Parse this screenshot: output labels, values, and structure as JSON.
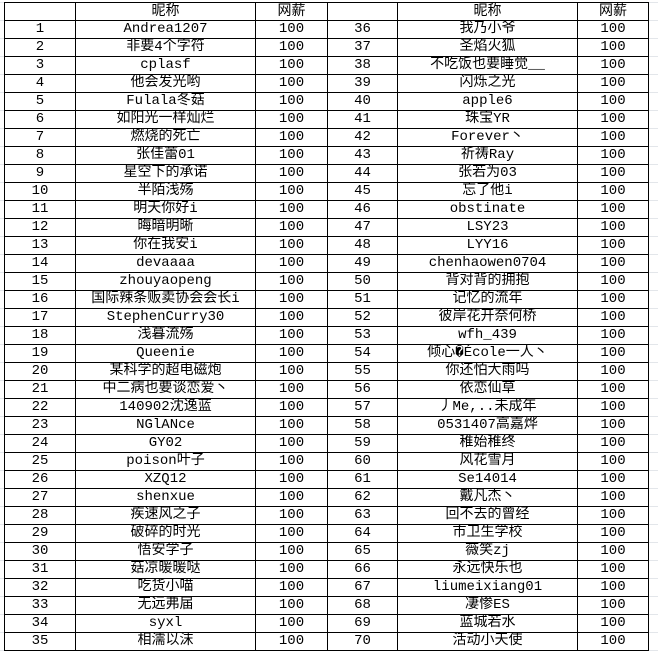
{
  "headers": {
    "index": "",
    "name": "昵称",
    "salary": "网薪"
  },
  "rows": [
    {
      "no": "1",
      "name": "Andrea1207",
      "salary": "100"
    },
    {
      "no": "2",
      "name": "非要4个字符",
      "salary": "100"
    },
    {
      "no": "3",
      "name": "cplasf",
      "salary": "100"
    },
    {
      "no": "4",
      "name": "他会发光哟",
      "salary": "100"
    },
    {
      "no": "5",
      "name": "Fulala冬菇",
      "salary": "100"
    },
    {
      "no": "6",
      "name": "如阳光一样灿烂",
      "salary": "100"
    },
    {
      "no": "7",
      "name": "燃烧的死亡",
      "salary": "100"
    },
    {
      "no": "8",
      "name": "张佳蕾01",
      "salary": "100"
    },
    {
      "no": "9",
      "name": "星空下的承诺",
      "salary": "100"
    },
    {
      "no": "10",
      "name": "半陌浅殇",
      "salary": "100"
    },
    {
      "no": "11",
      "name": "明天你好i",
      "salary": "100"
    },
    {
      "no": "12",
      "name": "晦暗明晰",
      "salary": "100"
    },
    {
      "no": "13",
      "name": "你在我安i",
      "salary": "100"
    },
    {
      "no": "14",
      "name": "devaaaa",
      "salary": "100"
    },
    {
      "no": "15",
      "name": "zhouyaopeng",
      "salary": "100"
    },
    {
      "no": "16",
      "name": "国际辣条贩卖协会会长i",
      "salary": "100"
    },
    {
      "no": "17",
      "name": "StephenCurry30",
      "salary": "100"
    },
    {
      "no": "18",
      "name": "浅暮流殇",
      "salary": "100"
    },
    {
      "no": "19",
      "name": "Queenie",
      "salary": "100"
    },
    {
      "no": "20",
      "name": "某科学的超电磁炮",
      "salary": "100"
    },
    {
      "no": "21",
      "name": "中二病也要谈恋爱丶",
      "salary": "100"
    },
    {
      "no": "22",
      "name": "140902沈逸蓝",
      "salary": "100"
    },
    {
      "no": "23",
      "name": "NGlANce",
      "salary": "100"
    },
    {
      "no": "24",
      "name": "GY02",
      "salary": "100"
    },
    {
      "no": "25",
      "name": "poison叶子",
      "salary": "100"
    },
    {
      "no": "26",
      "name": "XZQ12",
      "salary": "100"
    },
    {
      "no": "27",
      "name": "shenxue",
      "salary": "100"
    },
    {
      "no": "28",
      "name": "疾速风之子",
      "salary": "100"
    },
    {
      "no": "29",
      "name": "破碎的时光",
      "salary": "100"
    },
    {
      "no": "30",
      "name": "悟安学子",
      "salary": "100"
    },
    {
      "no": "31",
      "name": "菇凉暖暖哒",
      "salary": "100"
    },
    {
      "no": "32",
      "name": "吃货小喵",
      "salary": "100"
    },
    {
      "no": "33",
      "name": "无远弗届",
      "salary": "100"
    },
    {
      "no": "34",
      "name": "syxl",
      "salary": "100"
    },
    {
      "no": "35",
      "name": "相濡以沫",
      "salary": "100"
    },
    {
      "no": "36",
      "name": "我乃小爷",
      "salary": "100"
    },
    {
      "no": "37",
      "name": "圣焰火狐",
      "salary": "100"
    },
    {
      "no": "38",
      "name": "不吃饭也要睡觉__",
      "salary": "100"
    },
    {
      "no": "39",
      "name": "闪烁之光",
      "salary": "100"
    },
    {
      "no": "40",
      "name": "apple6",
      "salary": "100"
    },
    {
      "no": "41",
      "name": "珠宝YR",
      "salary": "100"
    },
    {
      "no": "42",
      "name": "Forever丶",
      "salary": "100"
    },
    {
      "no": "43",
      "name": "祈祷Ray",
      "salary": "100"
    },
    {
      "no": "44",
      "name": "张若为03",
      "salary": "100"
    },
    {
      "no": "45",
      "name": "忘了他i",
      "salary": "100"
    },
    {
      "no": "46",
      "name": "obstinate",
      "salary": "100"
    },
    {
      "no": "47",
      "name": "LSY23",
      "salary": "100"
    },
    {
      "no": "48",
      "name": "LYY16",
      "salary": "100"
    },
    {
      "no": "49",
      "name": "chenhaowen0704",
      "salary": "100"
    },
    {
      "no": "50",
      "name": "背对背的拥抱",
      "salary": "100"
    },
    {
      "no": "51",
      "name": "记忆的流年",
      "salary": "100"
    },
    {
      "no": "52",
      "name": "彼岸花开奈何桥",
      "salary": "100"
    },
    {
      "no": "53",
      "name": "wfh_439",
      "salary": "100"
    },
    {
      "no": "54",
      "name": "倾心�École一人丶",
      "salary": "100"
    },
    {
      "no": "55",
      "name": "你还怕大雨吗",
      "salary": "100"
    },
    {
      "no": "56",
      "name": "依恋仙草",
      "salary": "100"
    },
    {
      "no": "57",
      "name": "丿Me,..未成年",
      "salary": "100"
    },
    {
      "no": "58",
      "name": "0531407高嘉烨",
      "salary": "100"
    },
    {
      "no": "59",
      "name": "稚始稚终",
      "salary": "100"
    },
    {
      "no": "60",
      "name": "风花雪月",
      "salary": "100"
    },
    {
      "no": "61",
      "name": "Se14014",
      "salary": "100"
    },
    {
      "no": "62",
      "name": "戴凡杰丶",
      "salary": "100"
    },
    {
      "no": "63",
      "name": "回不去的曾经",
      "salary": "100"
    },
    {
      "no": "64",
      "name": "市卫生学校",
      "salary": "100"
    },
    {
      "no": "65",
      "name": "薇笑zj",
      "salary": "100"
    },
    {
      "no": "66",
      "name": "永远快乐也",
      "salary": "100"
    },
    {
      "no": "67",
      "name": "liumeixiang01",
      "salary": "100"
    },
    {
      "no": "68",
      "name": "凄惨ES",
      "salary": "100"
    },
    {
      "no": "69",
      "name": "蓝城若水",
      "salary": "100"
    },
    {
      "no": "70",
      "name": "活动小天使",
      "salary": "100"
    }
  ]
}
